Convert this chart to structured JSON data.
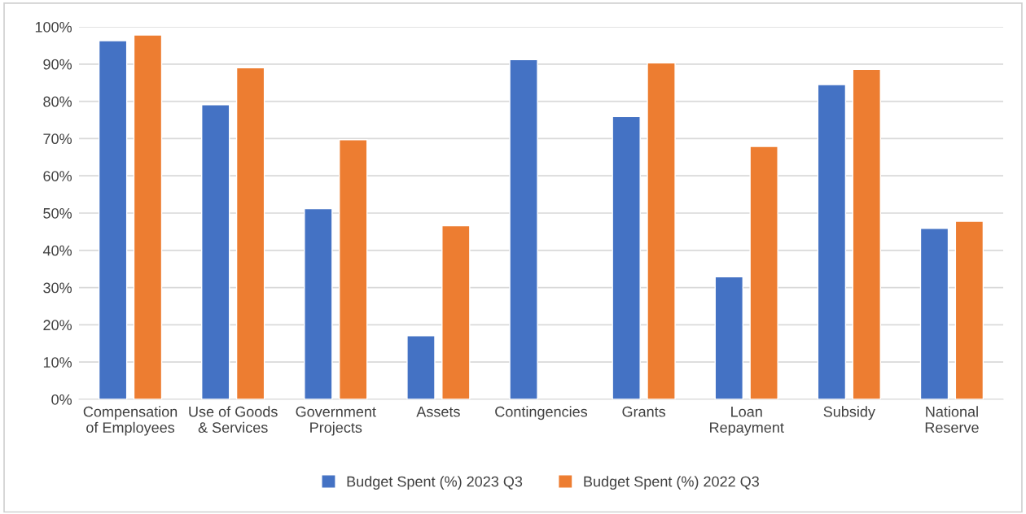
{
  "chart_data": {
    "type": "bar",
    "categories": [
      "Compensation\nof Employees",
      "Use of Goods\n& Services",
      "Government\nProjects",
      "Assets",
      "Contingencies",
      "Grants",
      "Loan\nRepayment",
      "Subsidy",
      "National\nReserve"
    ],
    "series": [
      {
        "name": "Budget Spent (%) 2023 Q3",
        "color": "#4472c4",
        "values": [
          96.3,
          79.1,
          51.2,
          17.1,
          91.2,
          75.9,
          32.9,
          84.5,
          45.9
        ]
      },
      {
        "name": "Budget Spent (%) 2022 Q3",
        "color": "#ed7d31",
        "values": [
          97.8,
          89.0,
          69.7,
          46.6,
          null,
          90.3,
          67.9,
          88.6,
          47.8
        ]
      }
    ],
    "ylim": [
      0,
      100
    ],
    "yticks": [
      {
        "value": 0,
        "label": "0%"
      },
      {
        "value": 10,
        "label": "10%"
      },
      {
        "value": 20,
        "label": "20%"
      },
      {
        "value": 30,
        "label": "30%"
      },
      {
        "value": 40,
        "label": "40%"
      },
      {
        "value": 50,
        "label": "50%"
      },
      {
        "value": 60,
        "label": "60%"
      },
      {
        "value": 70,
        "label": "70%"
      },
      {
        "value": 80,
        "label": "80%"
      },
      {
        "value": 90,
        "label": "90%"
      },
      {
        "value": 100,
        "label": "100%"
      }
    ],
    "grid": "y",
    "legend": "bottom"
  }
}
